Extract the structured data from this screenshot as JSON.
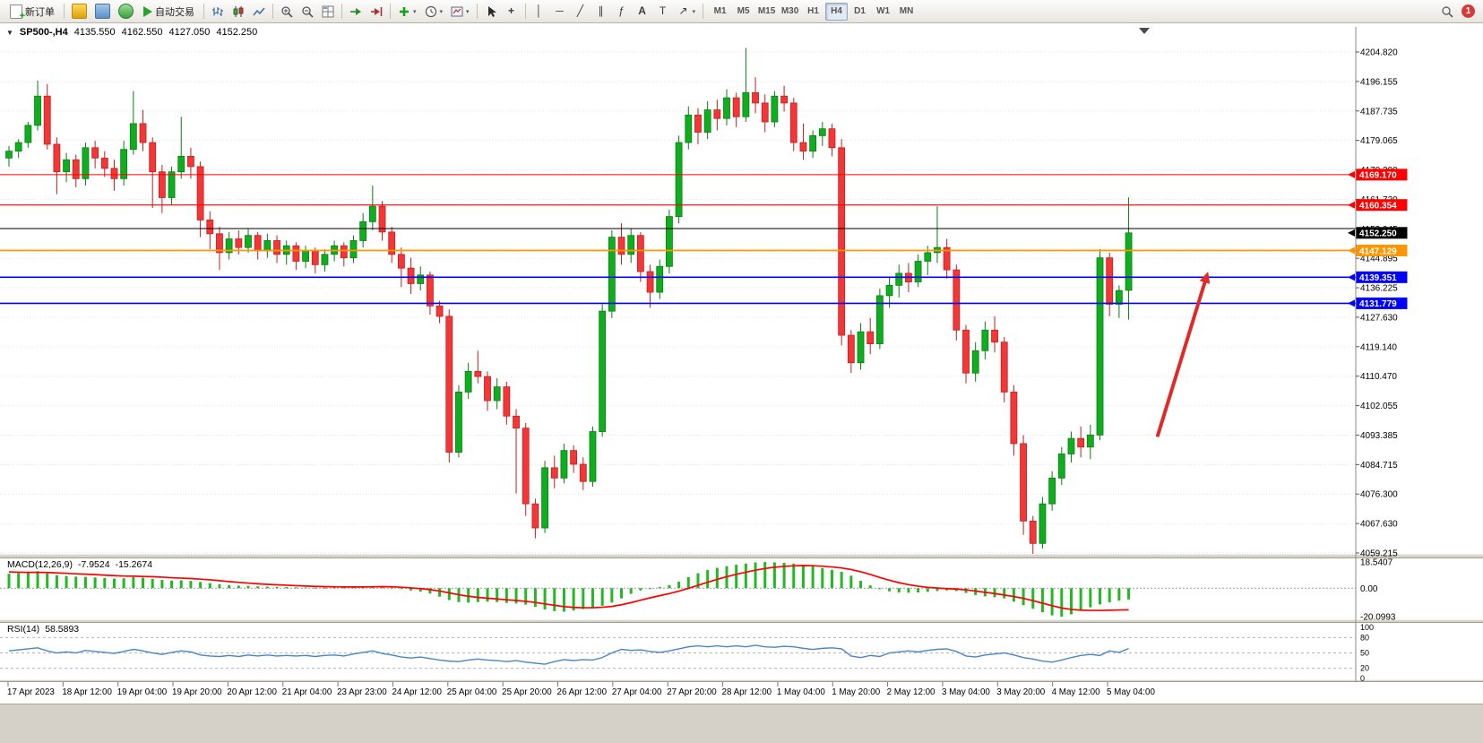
{
  "toolbar": {
    "new_order_label": "新订单",
    "autotrading_label": "自动交易",
    "text_tool_label": "A",
    "label_tool_label": "T",
    "timeframes": [
      "M1",
      "M5",
      "M15",
      "M30",
      "H1",
      "H4",
      "D1",
      "W1",
      "MN"
    ],
    "active_timeframe": "H4",
    "notification_count": "1"
  },
  "icons": {
    "collapse_triangle": "▼",
    "vertical_line": "│",
    "horizontal_line": "─",
    "trendline": "╱",
    "channel": "∥",
    "fibonacci": "ƒ",
    "crosshair": "+",
    "arrows": "↗",
    "dropdown_caret": "▾"
  },
  "chart_header": {
    "symbol_period": "SP500-,H4",
    "open": "4135.550",
    "high": "4162.550",
    "low": "4127.050",
    "close": "4152.250"
  },
  "chart_data": [
    {
      "id": "price",
      "type": "candlestick",
      "title": "SP500-,H4",
      "up_color": "#0fae1e",
      "down_color": "#f53636",
      "up_border": "#0a7d14",
      "down_border": "#c11f1f",
      "y_range": [
        4059.215,
        4204.82
      ],
      "y_axis_ticks": [
        "4204.820",
        "4196.155",
        "4187.735",
        "4179.065",
        "4170.390",
        "4161.720",
        "4153.045",
        "4144.895",
        "4136.225",
        "4127.630",
        "4119.140",
        "4110.470",
        "4102.055",
        "4093.385",
        "4084.715",
        "4076.300",
        "4067.630",
        "4059.215"
      ],
      "x_labels": [
        "17 Apr 2023",
        "18 Apr 12:00",
        "19 Apr 04:00",
        "19 Apr 20:00",
        "20 Apr 12:00",
        "21 Apr 04:00",
        "23 Apr 23:00",
        "24 Apr 12:00",
        "25 Apr 04:00",
        "25 Apr 20:00",
        "26 Apr 12:00",
        "27 Apr 04:00",
        "27 Apr 20:00",
        "28 Apr 12:00",
        "1 May 04:00",
        "1 May 20:00",
        "2 May 12:00",
        "3 May 04:00",
        "3 May 20:00",
        "4 May 12:00",
        "5 May 04:00"
      ],
      "hlines": [
        {
          "price": 4169.17,
          "label": "4169.170",
          "color": "#ff0000",
          "width": 1.1
        },
        {
          "price": 4160.354,
          "label": "4160.354",
          "color": "#ff0000",
          "width": 1.1
        },
        {
          "price": 4153.5,
          "label": null,
          "color": "#000000",
          "width": 1.0
        },
        {
          "price": 4147.129,
          "label": "4147.129",
          "color": "#ff9500",
          "width": 1.8
        },
        {
          "price": 4139.351,
          "label": "4139.351",
          "color": "#0000ff",
          "width": 1.6
        },
        {
          "price": 4131.779,
          "label": "4131.779",
          "color": "#0000ff",
          "width": 1.6
        }
      ],
      "current_price": {
        "value": 4152.25,
        "label": "4152.250",
        "color": "#000000"
      },
      "annotations": [
        {
          "type": "arrow",
          "color": "#e02a2a",
          "x1_bar": 120,
          "price1": 4093,
          "x2_bar": 125.3,
          "price2": 4141
        }
      ],
      "candles": [
        [
          4174.0,
          4177.5,
          4171.5,
          4176.0
        ],
        [
          4176.0,
          4179.5,
          4174.0,
          4178.5
        ],
        [
          4178.5,
          4184.5,
          4177.0,
          4183.5
        ],
        [
          4183.5,
          4196.5,
          4182.0,
          4192.0
        ],
        [
          4192.0,
          4195.5,
          4176.5,
          4178.0
        ],
        [
          4178.0,
          4180.0,
          4163.5,
          4170.0
        ],
        [
          4170.0,
          4175.5,
          4167.0,
          4173.5
        ],
        [
          4173.5,
          4175.0,
          4165.5,
          4168.0
        ],
        [
          4168.0,
          4178.5,
          4166.0,
          4177.0
        ],
        [
          4177.0,
          4179.0,
          4171.0,
          4174.0
        ],
        [
          4174.0,
          4176.0,
          4168.5,
          4171.0
        ],
        [
          4171.0,
          4173.5,
          4164.5,
          4168.0
        ],
        [
          4168.0,
          4179.0,
          4166.0,
          4176.5
        ],
        [
          4176.5,
          4193.5,
          4175.0,
          4184.0
        ],
        [
          4184.0,
          4188.0,
          4176.0,
          4178.5
        ],
        [
          4178.5,
          4180.0,
          4159.5,
          4170.0
        ],
        [
          4170.0,
          4172.0,
          4158.0,
          4162.5
        ],
        [
          4162.5,
          4171.5,
          4160.5,
          4170.0
        ],
        [
          4170.0,
          4186.0,
          4168.0,
          4174.5
        ],
        [
          4174.5,
          4177.0,
          4168.0,
          4171.5
        ],
        [
          4171.5,
          4173.0,
          4151.0,
          4156.0
        ],
        [
          4156.0,
          4158.5,
          4147.5,
          4152.0
        ],
        [
          4152.0,
          4154.0,
          4141.5,
          4146.5
        ],
        [
          4146.5,
          4152.5,
          4144.5,
          4150.5
        ],
        [
          4150.5,
          4153.0,
          4146.0,
          4148.0
        ],
        [
          4148.0,
          4153.5,
          4146.5,
          4151.5
        ],
        [
          4151.5,
          4152.5,
          4144.5,
          4147.0
        ],
        [
          4147.0,
          4152.0,
          4145.0,
          4150.0
        ],
        [
          4150.0,
          4151.5,
          4143.5,
          4146.0
        ],
        [
          4146.0,
          4150.0,
          4143.0,
          4148.5
        ],
        [
          4148.5,
          4149.5,
          4141.5,
          4144.0
        ],
        [
          4144.0,
          4148.5,
          4142.0,
          4147.0
        ],
        [
          4147.0,
          4148.0,
          4140.5,
          4143.0
        ],
        [
          4143.0,
          4147.5,
          4141.0,
          4146.0
        ],
        [
          4146.0,
          4150.0,
          4144.0,
          4148.5
        ],
        [
          4148.5,
          4149.5,
          4142.5,
          4145.0
        ],
        [
          4145.0,
          4151.5,
          4143.5,
          4150.0
        ],
        [
          4150.0,
          4158.0,
          4148.0,
          4155.5
        ],
        [
          4155.5,
          4166.0,
          4153.0,
          4160.0
        ],
        [
          4160.0,
          4161.5,
          4150.0,
          4152.5
        ],
        [
          4152.5,
          4154.0,
          4143.5,
          4146.0
        ],
        [
          4146.0,
          4148.0,
          4136.5,
          4142.0
        ],
        [
          4142.0,
          4145.0,
          4134.5,
          4137.5
        ],
        [
          4137.5,
          4142.5,
          4135.5,
          4140.0
        ],
        [
          4140.0,
          4141.0,
          4128.5,
          4131.0
        ],
        [
          4131.0,
          4132.5,
          4126.0,
          4128.0
        ],
        [
          4128.0,
          4130.0,
          4085.5,
          4088.5
        ],
        [
          4088.5,
          4108.0,
          4087.0,
          4106.0
        ],
        [
          4106.0,
          4114.5,
          4104.0,
          4112.0
        ],
        [
          4112.0,
          4118.0,
          4108.5,
          4110.5
        ],
        [
          4110.5,
          4112.0,
          4100.5,
          4103.5
        ],
        [
          4103.5,
          4110.0,
          4101.0,
          4107.5
        ],
        [
          4107.5,
          4109.0,
          4096.5,
          4099.0
        ],
        [
          4099.0,
          4101.0,
          4076.5,
          4095.5
        ],
        [
          4095.5,
          4097.0,
          4070.0,
          4073.5
        ],
        [
          4073.5,
          4075.0,
          4063.5,
          4066.5
        ],
        [
          4066.5,
          4086.0,
          4065.0,
          4084.0
        ],
        [
          4084.0,
          4087.5,
          4078.0,
          4081.0
        ],
        [
          4081.0,
          4091.0,
          4079.5,
          4089.0
        ],
        [
          4089.0,
          4090.5,
          4082.5,
          4085.0
        ],
        [
          4085.0,
          4087.0,
          4077.5,
          4080.0
        ],
        [
          4080.0,
          4096.0,
          4078.5,
          4094.5
        ],
        [
          4094.5,
          4131.5,
          4093.0,
          4129.5
        ],
        [
          4129.5,
          4153.0,
          4127.5,
          4151.0
        ],
        [
          4151.0,
          4155.0,
          4143.0,
          4146.0
        ],
        [
          4146.0,
          4153.5,
          4143.5,
          4151.5
        ],
        [
          4151.5,
          4152.5,
          4138.0,
          4141.0
        ],
        [
          4141.0,
          4143.0,
          4130.5,
          4135.0
        ],
        [
          4135.0,
          4144.5,
          4133.0,
          4142.5
        ],
        [
          4142.5,
          4159.0,
          4140.5,
          4157.0
        ],
        [
          4157.0,
          4180.5,
          4155.0,
          4178.5
        ],
        [
          4178.5,
          4189.0,
          4176.5,
          4186.5
        ],
        [
          4186.5,
          4188.5,
          4178.0,
          4181.5
        ],
        [
          4181.5,
          4190.5,
          4179.5,
          4188.0
        ],
        [
          4188.0,
          4191.0,
          4182.0,
          4185.5
        ],
        [
          4185.5,
          4194.0,
          4183.5,
          4191.5
        ],
        [
          4191.5,
          4193.0,
          4183.0,
          4186.0
        ],
        [
          4186.0,
          4206.0,
          4184.5,
          4193.0
        ],
        [
          4193.0,
          4197.5,
          4187.0,
          4190.0
        ],
        [
          4190.0,
          4192.5,
          4181.5,
          4184.5
        ],
        [
          4184.5,
          4193.5,
          4183.0,
          4192.0
        ],
        [
          4192.0,
          4195.0,
          4187.5,
          4190.0
        ],
        [
          4190.0,
          4191.5,
          4176.0,
          4178.5
        ],
        [
          4178.5,
          4184.0,
          4173.5,
          4176.0
        ],
        [
          4176.0,
          4182.0,
          4174.0,
          4180.5
        ],
        [
          4180.5,
          4184.5,
          4177.5,
          4182.5
        ],
        [
          4182.5,
          4184.0,
          4174.5,
          4177.0
        ],
        [
          4177.0,
          4179.5,
          4119.5,
          4122.5
        ],
        [
          4122.5,
          4124.0,
          4111.5,
          4114.5
        ],
        [
          4114.5,
          4126.0,
          4112.5,
          4123.5
        ],
        [
          4123.5,
          4127.5,
          4117.0,
          4120.0
        ],
        [
          4120.0,
          4136.0,
          4118.5,
          4134.0
        ],
        [
          4134.0,
          4139.5,
          4130.5,
          4137.0
        ],
        [
          4137.0,
          4143.0,
          4133.5,
          4140.5
        ],
        [
          4140.5,
          4143.5,
          4135.0,
          4138.0
        ],
        [
          4138.0,
          4146.0,
          4136.5,
          4144.0
        ],
        [
          4144.0,
          4148.5,
          4140.0,
          4146.5
        ],
        [
          4146.5,
          4160.0,
          4143.5,
          4148.0
        ],
        [
          4148.0,
          4150.5,
          4139.0,
          4141.5
        ],
        [
          4141.5,
          4143.0,
          4121.0,
          4124.0
        ],
        [
          4124.0,
          4125.5,
          4108.5,
          4111.5
        ],
        [
          4111.5,
          4120.5,
          4109.0,
          4118.0
        ],
        [
          4118.0,
          4126.5,
          4115.5,
          4124.0
        ],
        [
          4124.0,
          4128.0,
          4117.5,
          4120.5
        ],
        [
          4120.5,
          4122.0,
          4103.0,
          4106.0
        ],
        [
          4106.0,
          4108.0,
          4087.5,
          4091.0
        ],
        [
          4091.0,
          4093.5,
          4064.5,
          4068.5
        ],
        [
          4068.5,
          4070.0,
          4058.8,
          4062.0
        ],
        [
          4062.0,
          4075.5,
          4060.5,
          4073.5
        ],
        [
          4073.5,
          4083.0,
          4071.5,
          4081.0
        ],
        [
          4081.0,
          4090.0,
          4079.0,
          4088.0
        ],
        [
          4088.0,
          4094.5,
          4085.5,
          4092.5
        ],
        [
          4092.5,
          4096.0,
          4087.0,
          4090.0
        ],
        [
          4090.0,
          4096.5,
          4086.5,
          4093.5
        ],
        [
          4093.5,
          4147.5,
          4092.0,
          4145.0
        ],
        [
          4145.0,
          4146.5,
          4128.0,
          4131.5
        ],
        [
          4131.5,
          4137.0,
          4127.5,
          4135.5
        ],
        [
          4135.55,
          4162.55,
          4127.05,
          4152.25
        ]
      ]
    },
    {
      "id": "macd",
      "type": "bar",
      "label": "MACD(12,26,9)",
      "main_value": "-7.9524",
      "signal_value": "-15.2674",
      "hist_color": "#25b825",
      "signal_color": "#ff0000",
      "y_range": [
        -20.0993,
        18.5407
      ],
      "y_ticks": [
        "18.5407",
        "0.00",
        "-20.0993"
      ],
      "histogram": [
        10.2,
        10.8,
        11.4,
        12.0,
        10.5,
        9.2,
        8.6,
        8.2,
        8.0,
        7.6,
        7.2,
        6.8,
        7.0,
        7.8,
        7.4,
        6.6,
        5.8,
        5.4,
        5.6,
        5.2,
        4.4,
        3.6,
        2.8,
        2.2,
        1.8,
        1.6,
        1.3,
        1.1,
        0.9,
        0.8,
        0.6,
        0.5,
        0.4,
        0.4,
        0.5,
        0.5,
        0.7,
        1.1,
        1.5,
        1.2,
        0.4,
        -0.6,
        -1.6,
        -2.4,
        -3.8,
        -6.0,
        -8.4,
        -9.8,
        -10.2,
        -9.8,
        -9.5,
        -9.8,
        -10.4,
        -10.8,
        -11.6,
        -13.2,
        -15.0,
        -16.2,
        -16.6,
        -15.8,
        -14.8,
        -13.8,
        -12.4,
        -10.2,
        -7.2,
        -4.0,
        -1.6,
        -0.2,
        0.8,
        2.2,
        4.6,
        7.8,
        10.6,
        12.8,
        14.4,
        15.6,
        16.6,
        17.4,
        18.2,
        18.5,
        18.3,
        17.9,
        17.4,
        16.6,
        15.4,
        14.2,
        13.0,
        11.6,
        8.8,
        5.2,
        2.0,
        -0.6,
        -2.2,
        -3.0,
        -3.2,
        -3.0,
        -2.6,
        -2.0,
        -1.6,
        -2.0,
        -3.4,
        -4.8,
        -5.8,
        -6.4,
        -7.2,
        -9.5,
        -12.0,
        -14.5,
        -17.0,
        -19.2,
        -20.1,
        -18.5,
        -16.0,
        -13.5,
        -11.5,
        -10.0,
        -8.8,
        -7.95
      ],
      "signal": [
        11.5,
        11.3,
        11.2,
        11.2,
        11.1,
        10.8,
        10.5,
        10.2,
        9.9,
        9.6,
        9.2,
        8.9,
        8.6,
        8.5,
        8.3,
        8.1,
        7.8,
        7.4,
        7.1,
        6.8,
        6.4,
        5.9,
        5.3,
        4.7,
        4.1,
        3.6,
        3.1,
        2.7,
        2.4,
        2.1,
        1.8,
        1.5,
        1.3,
        1.1,
        1.0,
        0.9,
        0.9,
        0.9,
        1.0,
        1.1,
        1.0,
        0.7,
        0.2,
        -0.3,
        -1.0,
        -2.0,
        -3.3,
        -4.6,
        -5.7,
        -6.5,
        -7.1,
        -7.6,
        -8.2,
        -8.7,
        -9.3,
        -10.1,
        -11.1,
        -12.1,
        -13.0,
        -13.6,
        -13.8,
        -13.8,
        -13.5,
        -12.9,
        -11.7,
        -10.2,
        -8.5,
        -6.8,
        -5.3,
        -3.8,
        -2.1,
        -0.1,
        2.0,
        4.2,
        6.2,
        8.1,
        9.8,
        11.3,
        12.7,
        13.9,
        14.8,
        15.4,
        15.8,
        16.0,
        15.9,
        15.5,
        15.0,
        14.3,
        13.2,
        11.6,
        9.7,
        7.6,
        5.6,
        3.9,
        2.5,
        1.4,
        0.6,
        0.1,
        -0.3,
        -0.6,
        -1.2,
        -2.0,
        -2.9,
        -3.8,
        -4.8,
        -5.9,
        -7.2,
        -8.8,
        -10.6,
        -12.4,
        -14.0,
        -15.0,
        -15.5,
        -15.7,
        -15.7,
        -15.6,
        -15.4,
        -15.27
      ]
    },
    {
      "id": "rsi",
      "type": "line",
      "label": "RSI(14)",
      "value": "58.5893",
      "color": "#4a85c8",
      "levels": [
        80,
        50,
        20
      ],
      "y_ticks": [
        "100",
        "80",
        "50",
        "20",
        "0"
      ],
      "values": [
        54,
        56,
        58,
        60,
        54,
        50,
        52,
        50,
        55,
        53,
        51,
        49,
        53,
        57,
        54,
        50,
        47,
        51,
        54,
        52,
        46,
        44,
        43,
        45,
        43,
        46,
        44,
        46,
        44,
        45,
        44,
        45,
        43,
        45,
        46,
        44,
        48,
        51,
        54,
        49,
        46,
        42,
        40,
        42,
        39,
        36,
        34,
        33,
        36,
        38,
        36,
        35,
        33,
        35,
        32,
        30,
        28,
        33,
        37,
        35,
        37,
        36,
        41,
        50,
        57,
        55,
        56,
        53,
        51,
        54,
        58,
        62,
        64,
        62,
        64,
        62,
        64,
        62,
        65,
        62,
        61,
        63,
        62,
        59,
        57,
        59,
        60,
        58,
        44,
        41,
        45,
        43,
        50,
        52,
        54,
        52,
        55,
        57,
        58,
        53,
        44,
        42,
        46,
        48,
        50,
        46,
        41,
        38,
        34,
        32,
        36,
        41,
        45,
        47,
        45,
        54,
        51,
        58.59
      ]
    }
  ]
}
